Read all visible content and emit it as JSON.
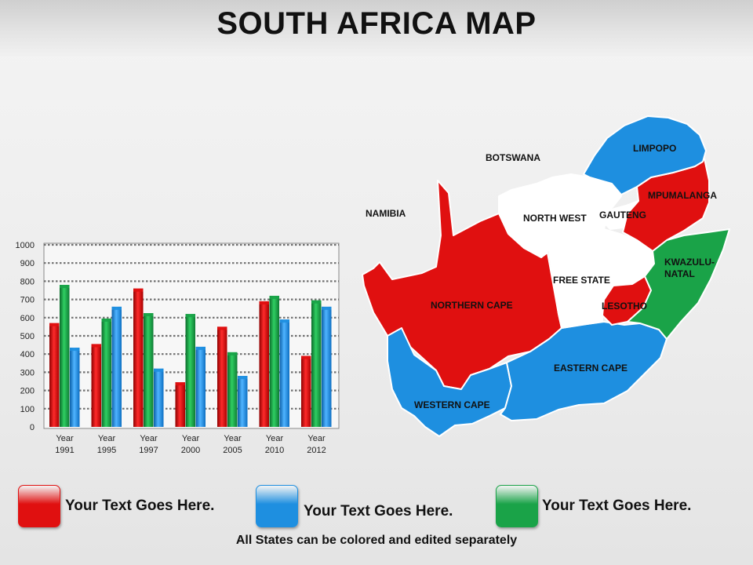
{
  "page": {
    "title": "SOUTH AFRICA MAP"
  },
  "colors": {
    "red": "#e01010",
    "green": "#1aa348",
    "blue": "#1e8fe0",
    "white": "#ffffff"
  },
  "chart_data": {
    "type": "bar",
    "categories": [
      "Year 1991",
      "Year 1995",
      "Year 1997",
      "Year 2000",
      "Year 2005",
      "Year 2010",
      "Year 2012"
    ],
    "category_lines": [
      [
        "Year",
        "1991"
      ],
      [
        "Year",
        "1995"
      ],
      [
        "Year",
        "1997"
      ],
      [
        "Year",
        "2000"
      ],
      [
        "Year",
        "2005"
      ],
      [
        "Year",
        "2010"
      ],
      [
        "Year",
        "2012"
      ]
    ],
    "series": [
      {
        "color": "red",
        "values": [
          570,
          455,
          760,
          245,
          550,
          690,
          390
        ]
      },
      {
        "color": "green",
        "values": [
          780,
          595,
          625,
          620,
          410,
          720,
          695
        ]
      },
      {
        "color": "blue",
        "values": [
          435,
          660,
          320,
          440,
          280,
          590,
          660
        ]
      }
    ],
    "y_ticks": [
      0,
      100,
      200,
      300,
      400,
      500,
      600,
      700,
      800,
      900,
      1000
    ],
    "ylim": [
      0,
      1000
    ],
    "grid": true
  },
  "map": {
    "regions": [
      {
        "key": "limpopo",
        "name": "LIMPOPO",
        "color": "blue"
      },
      {
        "key": "mpumalanga",
        "name": "MPUMALANGA",
        "color": "red"
      },
      {
        "key": "gauteng",
        "name": "GAUTENG",
        "color": "white"
      },
      {
        "key": "north_west",
        "name": "NORTH WEST",
        "color": "white"
      },
      {
        "key": "northern_cape",
        "name": "NORTHERN CAPE",
        "color": "red"
      },
      {
        "key": "free_state",
        "name": "FREE STATE",
        "color": "white"
      },
      {
        "key": "lesotho",
        "name": "LESOTHO",
        "color": "red"
      },
      {
        "key": "kwazulu_natal",
        "name": "KWAZULU-NATAL",
        "lines": [
          "KWAZULU-",
          "NATAL"
        ],
        "color": "green"
      },
      {
        "key": "eastern_cape",
        "name": "EASTERN  CAPE",
        "color": "blue"
      },
      {
        "key": "western_cape",
        "name": "WESTERN  CAPE",
        "color": "blue"
      }
    ],
    "neighbors": {
      "botswana": "BOTSWANA",
      "namibia": "NAMIBIA"
    }
  },
  "legend": [
    {
      "color": "red",
      "text": "Your Text Goes Here."
    },
    {
      "color": "blue",
      "text": "Your Text Goes Here."
    },
    {
      "color": "green",
      "text": "Your Text Goes Here."
    }
  ],
  "footer": {
    "note": "All States can be colored and edited separately"
  }
}
